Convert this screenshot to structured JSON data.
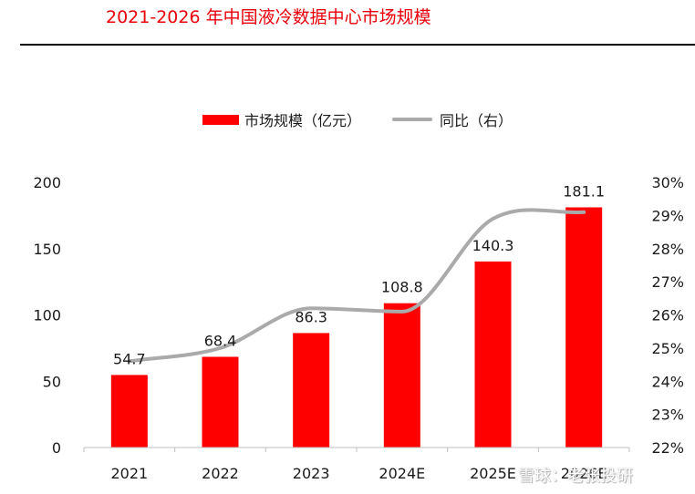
{
  "title": "2021-2026 年中国液冷数据中心市场规模",
  "watermark": "雪球：老张投研",
  "chart_data": {
    "type": "bar",
    "categories": [
      "2021",
      "2022",
      "2023",
      "2024E",
      "2025E",
      "2026E"
    ],
    "series": [
      {
        "name": "市场规模（亿元）",
        "type": "bar",
        "axis": "left",
        "values": [
          54.7,
          68.4,
          86.3,
          108.8,
          140.3,
          181.1
        ],
        "color": "#ff0000"
      },
      {
        "name": "同比（右）",
        "type": "line",
        "axis": "right",
        "values": [
          24.6,
          25.0,
          26.2,
          26.1,
          28.9,
          29.1
        ],
        "color": "#aaaaaa"
      }
    ],
    "data_labels": [
      "54.7",
      "68.4",
      "86.3",
      "108.8",
      "140.3",
      "181.1"
    ],
    "y_left": {
      "range": [
        0,
        200
      ],
      "ticks": [
        "0",
        "50",
        "100",
        "150",
        "200"
      ]
    },
    "y_right": {
      "range": [
        22,
        30
      ],
      "unit": "%",
      "ticks": [
        "22%",
        "23%",
        "24%",
        "25%",
        "26%",
        "27%",
        "28%",
        "29%",
        "30%"
      ]
    },
    "grid": false,
    "legend_position": "top"
  }
}
